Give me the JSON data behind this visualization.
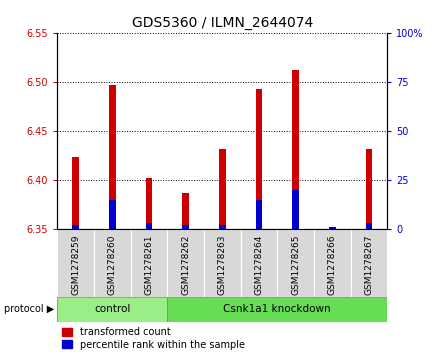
{
  "title": "GDS5360 / ILMN_2644074",
  "samples": [
    "GSM1278259",
    "GSM1278260",
    "GSM1278261",
    "GSM1278262",
    "GSM1278263",
    "GSM1278264",
    "GSM1278265",
    "GSM1278266",
    "GSM1278267"
  ],
  "transformed_counts": [
    6.424,
    6.497,
    6.402,
    6.387,
    6.432,
    6.493,
    6.512,
    6.352,
    6.432
  ],
  "percentile_ranks": [
    2,
    15,
    3,
    2,
    2,
    15,
    20,
    1,
    3
  ],
  "ylim_left": [
    6.35,
    6.55
  ],
  "ylim_right": [
    0,
    100
  ],
  "yticks_left": [
    6.35,
    6.4,
    6.45,
    6.5,
    6.55
  ],
  "yticks_right": [
    0,
    25,
    50,
    75,
    100
  ],
  "red_color": "#cc0000",
  "blue_color": "#0000cc",
  "baseline": 6.35,
  "control_count": 3,
  "control_label": "control",
  "knockdown_label": "Csnk1a1 knockdown",
  "control_color": "#99ee88",
  "knockdown_color": "#66dd55",
  "legend_items": [
    {
      "label": "transformed count",
      "color": "#cc0000"
    },
    {
      "label": "percentile rank within the sample",
      "color": "#0000cc"
    }
  ],
  "title_fontsize": 10,
  "tick_fontsize": 7,
  "sample_fontsize": 6.5,
  "column_bg_color": "#d8d8d8",
  "plot_bg": "white"
}
